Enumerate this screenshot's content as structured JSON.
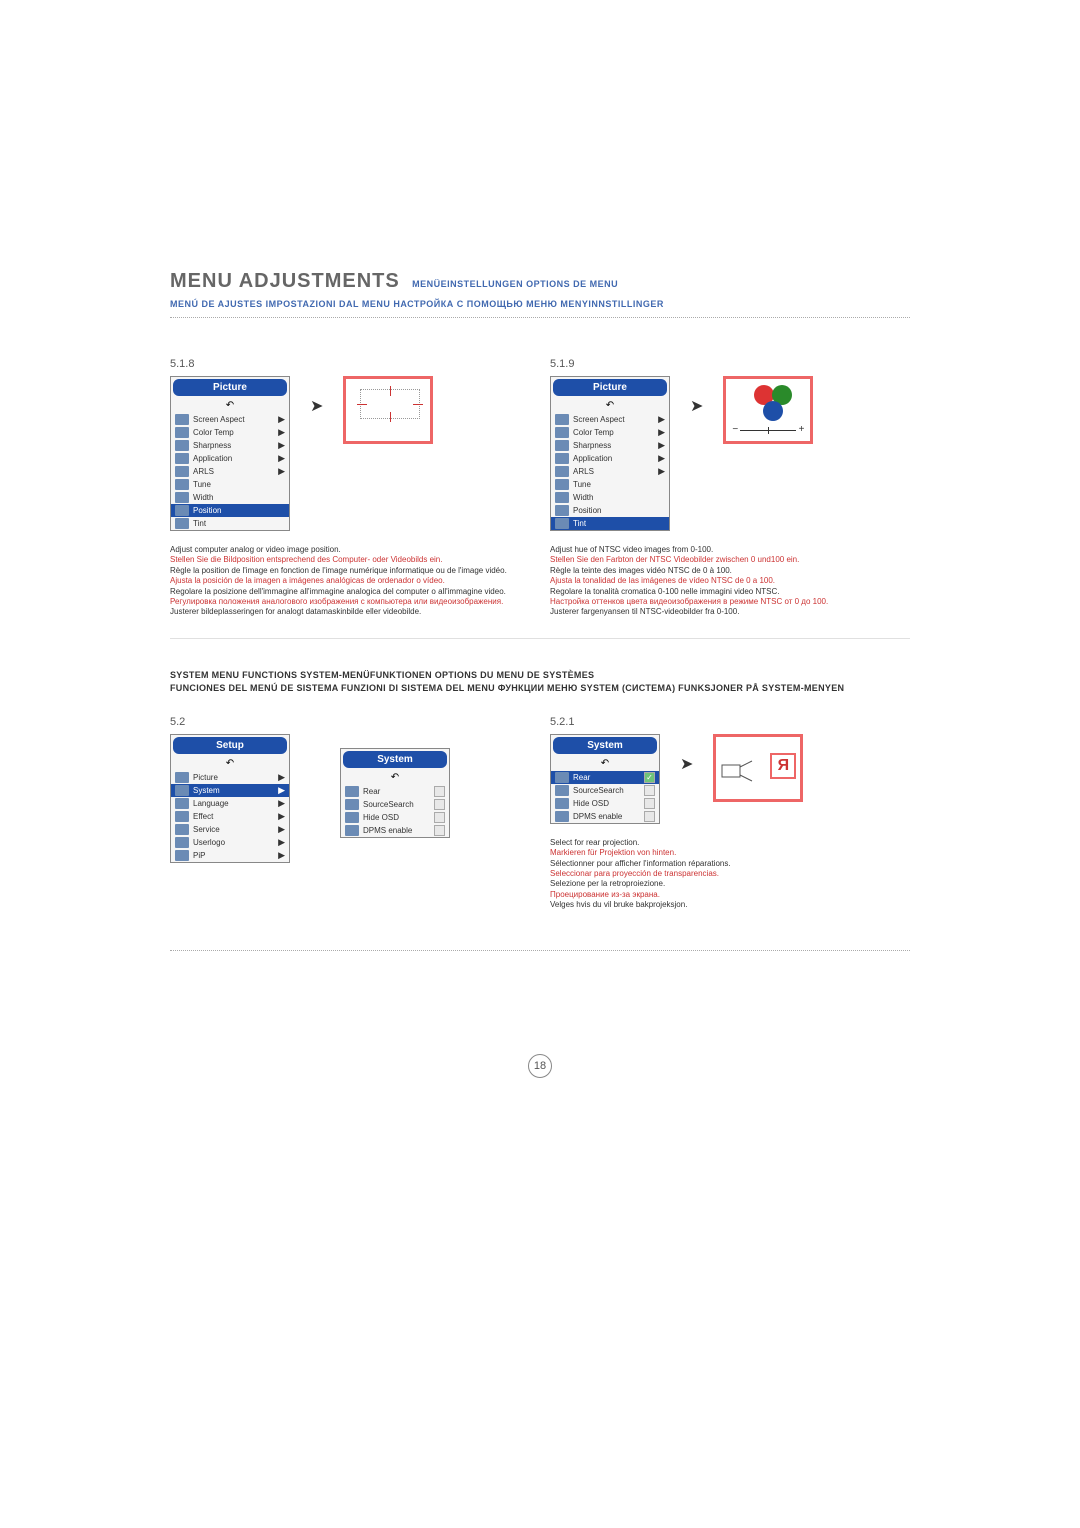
{
  "header": {
    "title": "MENU ADJUSTMENTS",
    "subs_line1": "MENÜEINSTELLUNGEN   OPTIONS DE MENU",
    "subs_line2": "MENÚ DE AJUSTES   IMPOSTAZIONI DAL MENU   НАСТРОЙКА С ПОМОЩЬЮ МЕНЮ   MENYINNSTILLINGER"
  },
  "section_518": {
    "num": "5.1.8",
    "menu_title": "Picture",
    "items": [
      {
        "label": "Screen Aspect",
        "arrow": true
      },
      {
        "label": "Color Temp",
        "arrow": true
      },
      {
        "label": "Sharpness",
        "arrow": true
      },
      {
        "label": "Application",
        "arrow": true
      },
      {
        "label": "ARLS",
        "arrow": true
      },
      {
        "label": "Tune",
        "arrow": false
      },
      {
        "label": "Width",
        "arrow": false
      },
      {
        "label": "Position",
        "arrow": false,
        "selected": true
      },
      {
        "label": "Tint",
        "arrow": false
      }
    ],
    "desc": {
      "en": "Adjust computer analog or video image position.",
      "de": "Stellen Sie die Bildposition entsprechend des Computer- oder Videobilds ein.",
      "fr": "Règle la position de l'image en fonction de l'image numérique informatique ou de l'image vidéo.",
      "es": "Ajusta la posición de la imagen a imágenes analógicas de ordenador o vídeo.",
      "it": "Regolare la posizione dell'immagine all'immagine analogica del computer o all'immagine video.",
      "ru": "Регулировка положения аналогового изображения с компьютера или видеоизображения.",
      "no": "Justerer bildeplasseringen for analogt datamaskinbilde eller videobilde."
    }
  },
  "section_519": {
    "num": "5.1.9",
    "menu_title": "Picture",
    "items": [
      {
        "label": "Screen Aspect",
        "arrow": true
      },
      {
        "label": "Color Temp",
        "arrow": true
      },
      {
        "label": "Sharpness",
        "arrow": true
      },
      {
        "label": "Application",
        "arrow": true
      },
      {
        "label": "ARLS",
        "arrow": true
      },
      {
        "label": "Tune",
        "arrow": false
      },
      {
        "label": "Width",
        "arrow": false
      },
      {
        "label": "Position",
        "arrow": false
      },
      {
        "label": "Tint",
        "arrow": false,
        "selected": true
      }
    ],
    "desc": {
      "en": "Adjust hue of NTSC video images from 0-100.",
      "de": "Stellen Sie den Farbton der NTSC Videobilder zwischen 0 und100 ein.",
      "fr": "Règle la teinte des images vidéo NTSC de 0 à 100.",
      "es": "Ajusta la tonalidad de las imágenes de vídeo NTSC de 0 a 100.",
      "it": "Regolare la tonalità cromatica 0-100 nelle immagini video NTSC.",
      "ru": "Настройка оттенков цвета видеоизображения в режиме NTSC от 0 до 100.",
      "no": "Justerer fargenyansen til NTSC-videobilder fra 0-100."
    },
    "preview_colors": {
      "red": "#d33",
      "green": "#2a8a2a",
      "blue": "#1e4fa8"
    }
  },
  "sysheading": "SYSTEM MENU FUNCTIONS   SYSTEM-MENÜFUNKTIONEN   OPTIONS DU MENU DE SYSTÈMES\nFUNCIONES DEL MENÚ DE SISTEMA   FUNZIONI DI SISTEMA DEL MENU   ФУНКЦИИ МЕНЮ SYSTEM (СИСТЕМА)   FUNKSJONER PÅ SYSTEM-MENYEN",
  "section_52": {
    "num": "5.2",
    "menu_title": "Setup",
    "items": [
      {
        "label": "Picture",
        "arrow": true
      },
      {
        "label": "System",
        "arrow": true,
        "selected": true
      },
      {
        "label": "Language",
        "arrow": true
      },
      {
        "label": "Effect",
        "arrow": true
      },
      {
        "label": "Service",
        "arrow": true
      },
      {
        "label": "Userlogo",
        "arrow": true
      },
      {
        "label": "PiP",
        "arrow": true
      }
    ],
    "submenu_title": "System",
    "submenu_items": [
      {
        "label": "Rear"
      },
      {
        "label": "SourceSearch"
      },
      {
        "label": "Hide OSD"
      },
      {
        "label": "DPMS enable"
      }
    ]
  },
  "section_521": {
    "num": "5.2.1",
    "menu_title": "System",
    "items": [
      {
        "label": "Rear",
        "checked": true,
        "selected": true
      },
      {
        "label": "SourceSearch"
      },
      {
        "label": "Hide OSD"
      },
      {
        "label": "DPMS enable"
      }
    ],
    "desc": {
      "en": "Select for rear projection.",
      "de": "Markieren für Projektion von hinten.",
      "fr": "Sélectionner pour afficher l'information réparations.",
      "es": "Seleccionar para proyección de transparencias.",
      "it": "Selezione per la retroproiezione.",
      "ru": "Проецирование из-за экрана.",
      "no": "Velges hvis du vil bruke bakprojeksjon."
    },
    "glyph": "Я"
  },
  "colors": {
    "blue_header": "#1e4fa8",
    "red_border": "#e05555",
    "red_text": "#c93333",
    "grey_text": "#666666",
    "blue_text": "#4169b0"
  },
  "pagenum": "18"
}
